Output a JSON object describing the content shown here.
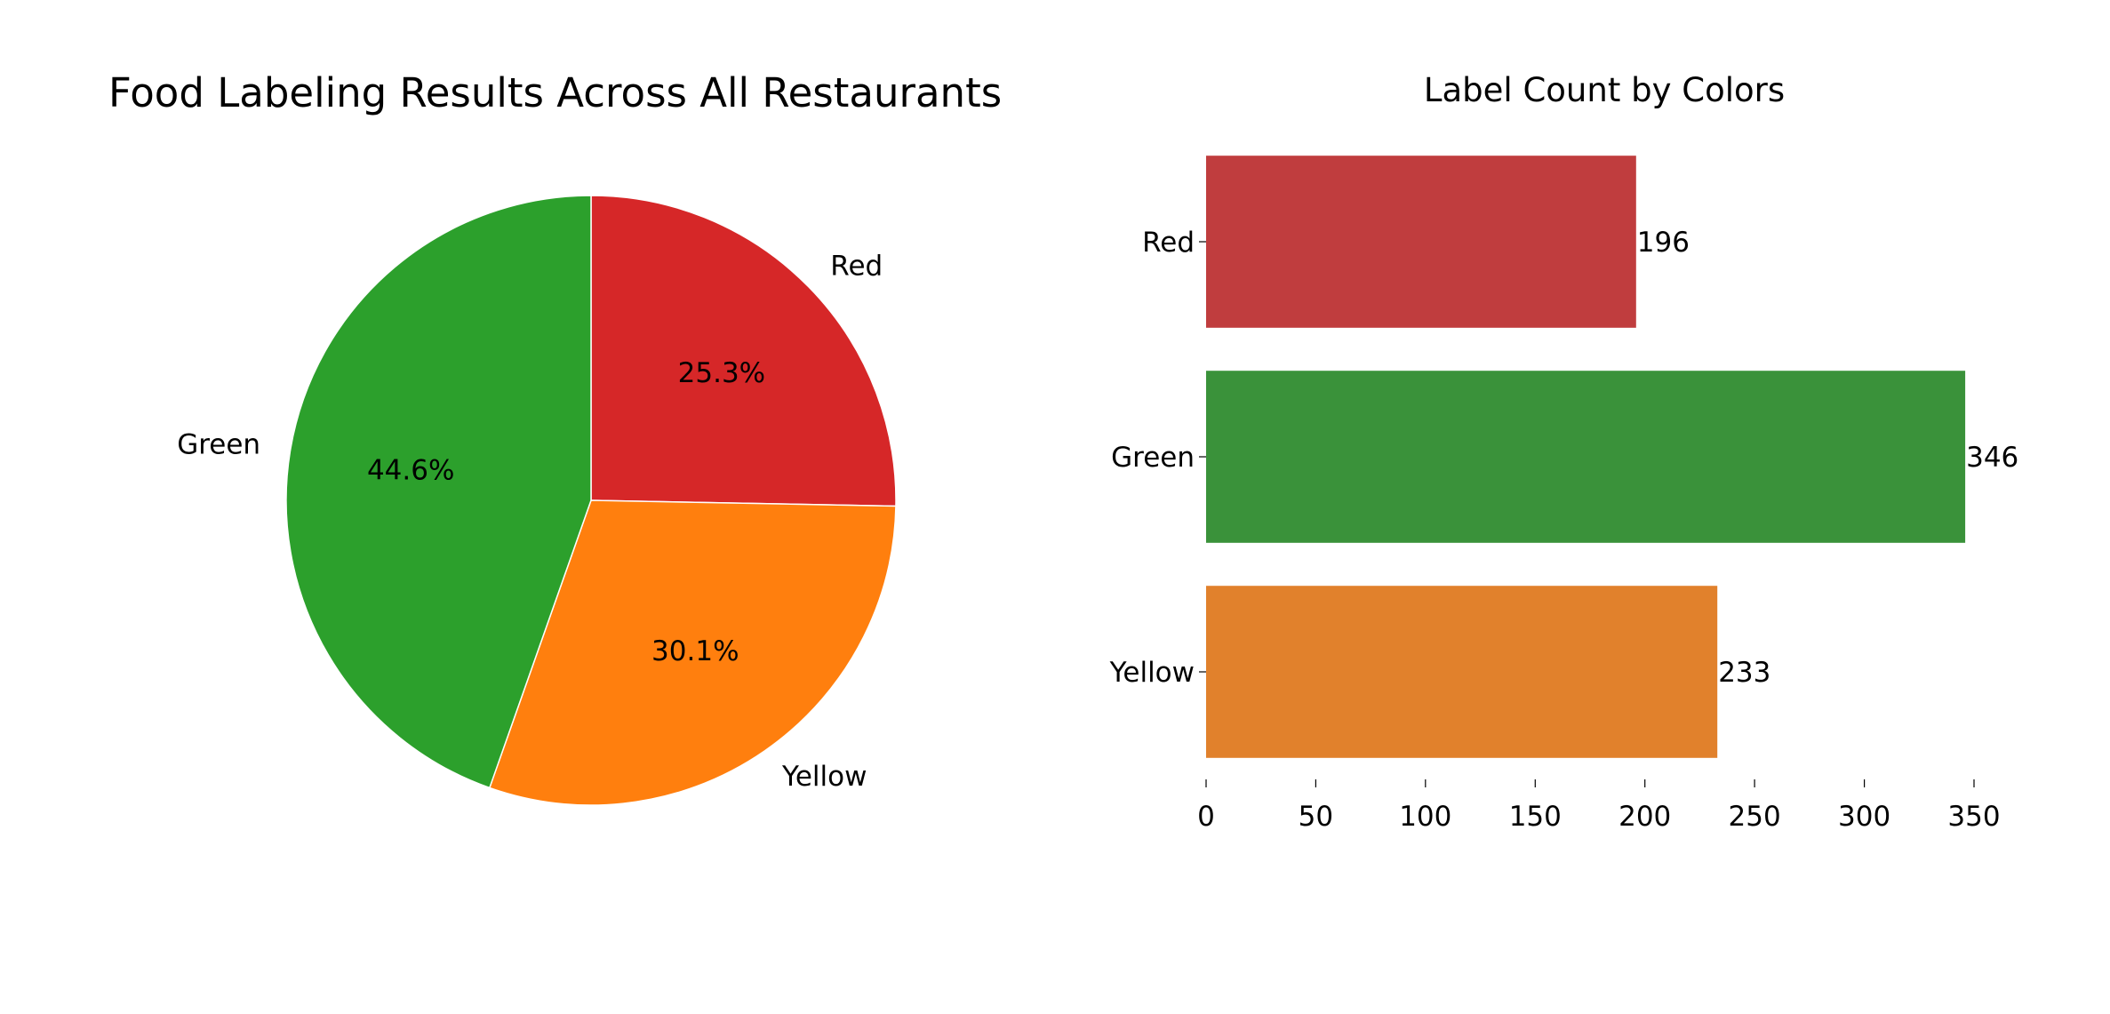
{
  "chart_data": [
    {
      "type": "pie",
      "title": "Food Labeling Results Across All Restaurants",
      "slices": [
        {
          "label": "Red",
          "percent": 25.3,
          "pct_label": "25.3%",
          "color": "#d62728"
        },
        {
          "label": "Yellow",
          "percent": 30.1,
          "pct_label": "30.1%",
          "color": "#ff7f0e"
        },
        {
          "label": "Green",
          "percent": 44.6,
          "pct_label": "44.6%",
          "color": "#2ca02c"
        }
      ],
      "start_angle_deg": 90,
      "direction": "clockwise"
    },
    {
      "type": "bar",
      "orientation": "horizontal",
      "title": "Label Count by Colors",
      "categories": [
        "Red",
        "Green",
        "Yellow"
      ],
      "values": [
        196,
        346,
        233
      ],
      "value_labels": [
        "196",
        "346",
        "233"
      ],
      "colors": [
        "#c03d3e",
        "#3a923a",
        "#e1812c"
      ],
      "xlim": [
        0,
        365
      ],
      "xticks": [
        0,
        50,
        100,
        150,
        200,
        250,
        300,
        350
      ],
      "xlabel": "",
      "ylabel": "",
      "grid": false
    }
  ]
}
